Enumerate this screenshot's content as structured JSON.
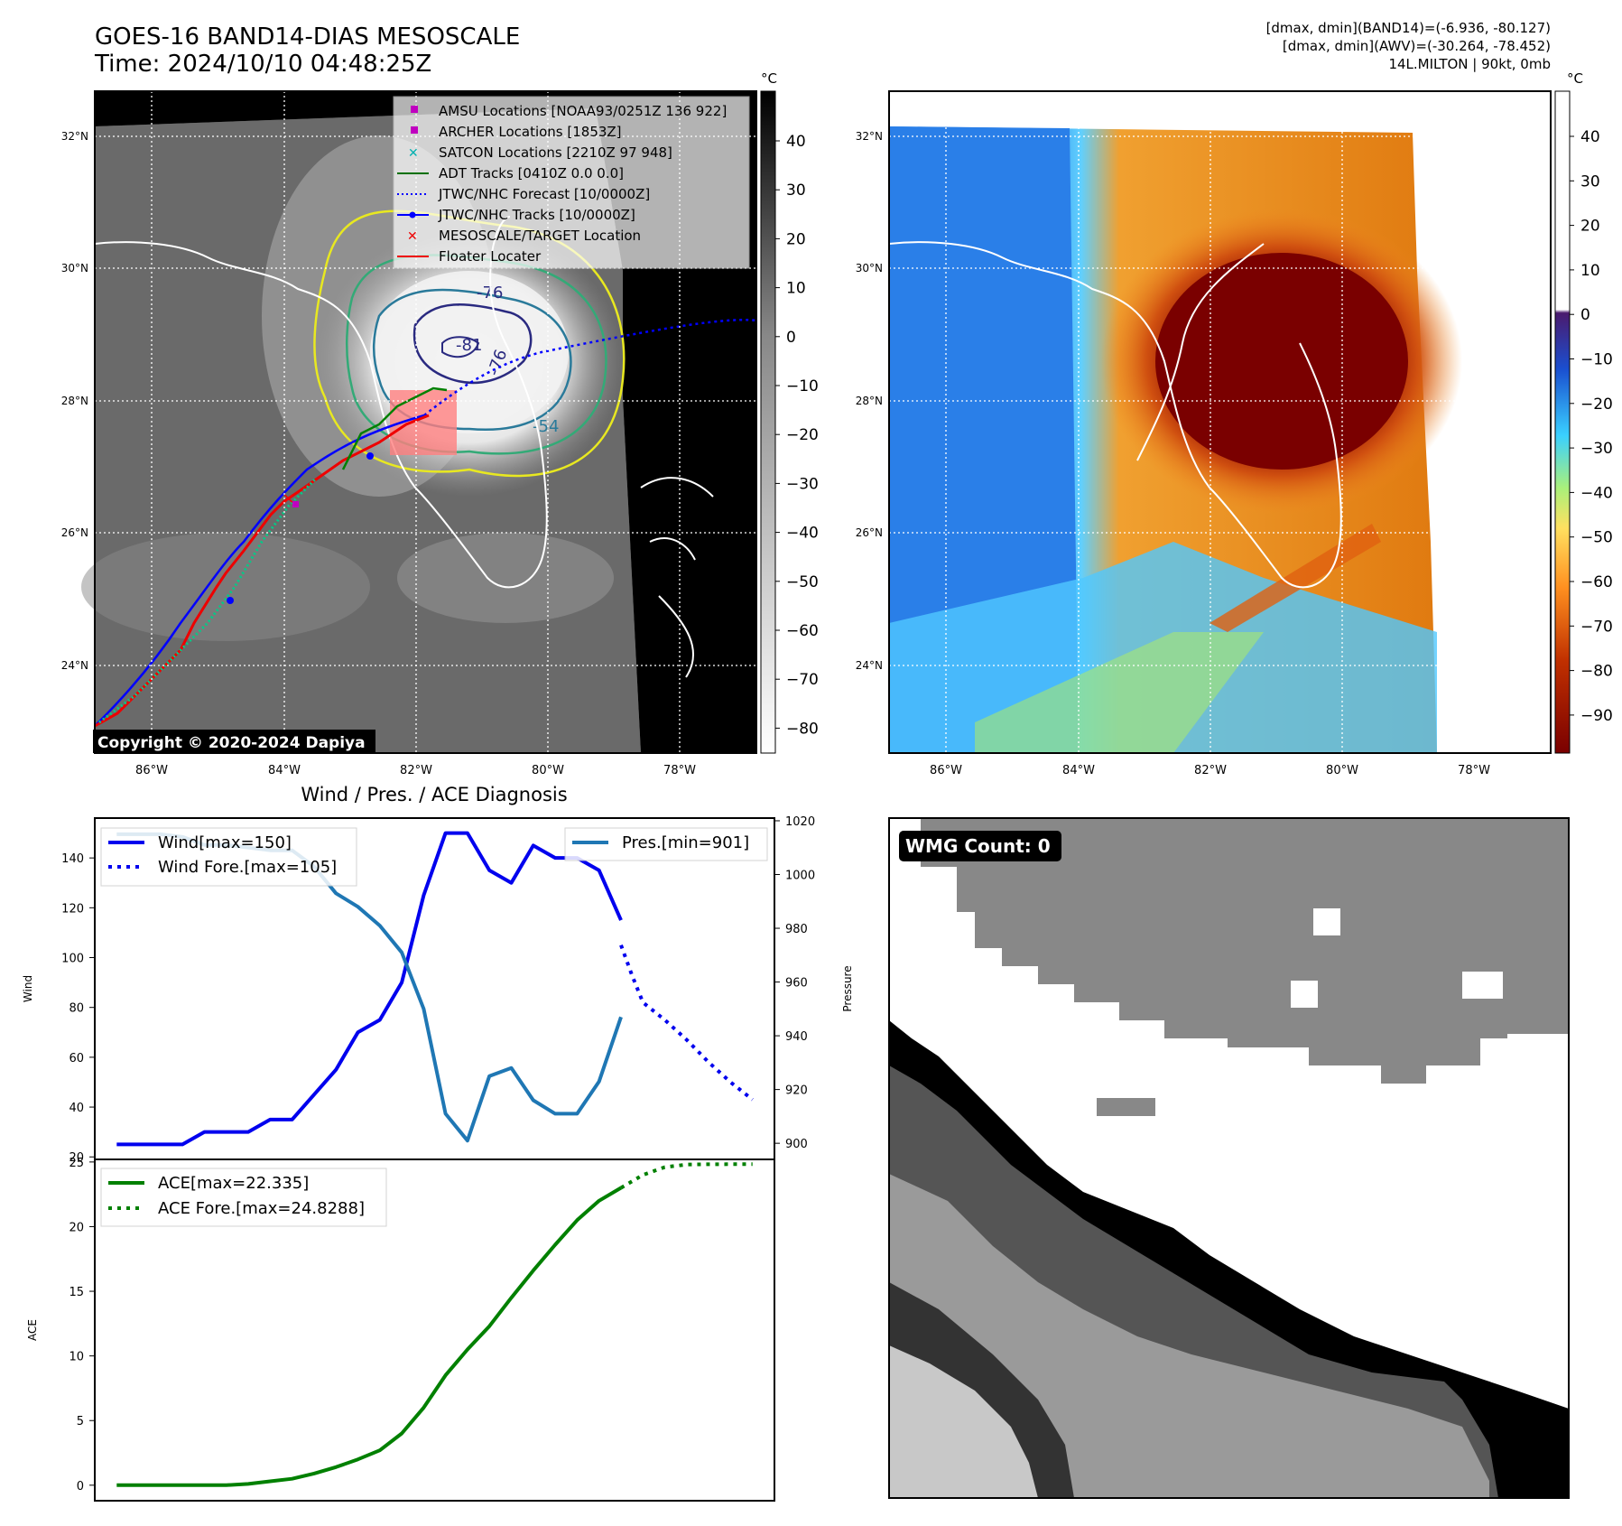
{
  "header": {
    "title_line1": "GOES-16 BAND14-DIAS MESOSCALE",
    "title_line2": "Time: 2024/10/10 04:48:25Z",
    "info_line1": "[dmax, dmin](BAND14)=(-6.936, -80.127)",
    "info_line2": "[dmax, dmin](AWV)=(-30.264, -78.452)",
    "info_line3": "14L.MILTON | 90kt, 0mb"
  },
  "map": {
    "lat_labels": [
      "32°N",
      "30°N",
      "28°N",
      "26°N",
      "24°N"
    ],
    "lon_labels": [
      "86°W",
      "84°W",
      "82°W",
      "80°W",
      "78°W"
    ],
    "copyright": "Copyright © 2020-2024 Dapiya",
    "contour_labels": [
      "-76",
      "-81",
      "-76",
      "-54"
    ],
    "legend": [
      {
        "label": "AMSU Locations [NOAA93/0251Z 136 922]",
        "color": "#c000c0"
      },
      {
        "label": "ARCHER Locations [1853Z]",
        "color": "#c000c0"
      },
      {
        "label": "SATCON Locations [2210Z 97 948]",
        "color": "#00b0b0"
      },
      {
        "label": "ADT Tracks [0410Z 0.0 0.0]",
        "color": "#007000"
      },
      {
        "label": "JTWC/NHC Forecast [10/0000Z]",
        "color": "#0000ff"
      },
      {
        "label": "JTWC/NHC Tracks [10/0000Z]",
        "color": "#0000ff"
      },
      {
        "label": "MESOSCALE/TARGET Location",
        "color": "#ff0000"
      },
      {
        "label": "Floater Locater",
        "color": "#ff0000"
      }
    ]
  },
  "colorbar_left": {
    "unit": "°C",
    "ticks": [
      "40",
      "30",
      "20",
      "10",
      "0",
      "−10",
      "−20",
      "−30",
      "−40",
      "−50",
      "−60",
      "−70",
      "−80"
    ]
  },
  "colorbar_right": {
    "unit": "°C",
    "ticks": [
      "40",
      "30",
      "20",
      "10",
      "0",
      "−10",
      "−20",
      "−30",
      "−40",
      "−50",
      "−60",
      "−70",
      "−80",
      "−90"
    ]
  },
  "wmg": {
    "label": "WMG Count: 0"
  },
  "chart_data": [
    {
      "type": "line",
      "title": "Wind / Pres. / ACE Diagnosis",
      "ylabel": "Wind",
      "ylabel_right": "Pressure",
      "ylim": [
        19,
        156
      ],
      "ylim_right": [
        894,
        1021
      ],
      "yticks": [
        20,
        40,
        60,
        80,
        100,
        120,
        140
      ],
      "yticks_right": [
        900,
        920,
        940,
        960,
        980,
        1000,
        1020
      ],
      "xlim": [
        -1,
        30
      ],
      "series": [
        {
          "name": "Wind[max=150]",
          "color": "#0000ee",
          "style": "solid",
          "x": [
            0,
            1,
            2,
            3,
            4,
            5,
            6,
            7,
            8,
            9,
            10,
            11,
            12,
            13,
            14,
            15,
            16,
            17,
            18,
            19,
            20,
            21,
            22,
            23
          ],
          "values": [
            25,
            25,
            25,
            25,
            30,
            30,
            30,
            35,
            35,
            45,
            55,
            70,
            75,
            90,
            125,
            150,
            150,
            135,
            130,
            145,
            140,
            140,
            135,
            115
          ]
        },
        {
          "name": "Wind Fore.[max=105]",
          "color": "#0000ee",
          "style": "dotted",
          "x": [
            23,
            23.5,
            24,
            25,
            26,
            27,
            28,
            29
          ],
          "values": [
            105,
            93,
            82,
            75,
            67,
            58,
            50,
            43
          ]
        },
        {
          "name": "Pres.[min=901]",
          "color": "#1f77b4",
          "style": "solid",
          "axis": "right",
          "x": [
            0,
            1,
            2,
            3,
            4,
            5,
            6,
            7,
            8,
            9,
            10,
            11,
            12,
            13,
            14,
            15,
            16,
            17,
            18,
            19,
            20,
            21,
            22,
            23
          ],
          "values": [
            1015,
            1015,
            1015,
            1014,
            1011,
            1011,
            1010,
            1009,
            1009,
            1003,
            993,
            988,
            981,
            971,
            950,
            911,
            901,
            925,
            928,
            916,
            911,
            911,
            923,
            947
          ]
        }
      ]
    },
    {
      "type": "line",
      "ylabel": "ACE",
      "ylim": [
        -1.2,
        25.2
      ],
      "yticks": [
        0,
        5,
        10,
        15,
        20,
        25
      ],
      "xlim": [
        -1,
        30
      ],
      "series": [
        {
          "name": "ACE[max=22.335]",
          "color": "#008000",
          "style": "solid",
          "x": [
            0,
            1,
            2,
            3,
            4,
            5,
            6,
            7,
            8,
            9,
            10,
            11,
            12,
            13,
            14,
            15,
            16,
            17,
            18,
            19,
            20,
            21,
            22,
            23
          ],
          "values": [
            0,
            0,
            0,
            0,
            0,
            0,
            0.1,
            0.3,
            0.5,
            0.9,
            1.4,
            2.0,
            2.7,
            4.0,
            6.0,
            8.5,
            10.5,
            12.3,
            14.5,
            16.6,
            18.6,
            20.5,
            22.0,
            23.0
          ]
        },
        {
          "name": "ACE Fore.[max=24.8288]",
          "color": "#008000",
          "style": "dotted",
          "x": [
            23,
            24,
            25,
            26,
            27,
            28,
            29
          ],
          "values": [
            23.0,
            24.0,
            24.6,
            24.8,
            24.82,
            24.83,
            24.83
          ]
        }
      ]
    }
  ]
}
